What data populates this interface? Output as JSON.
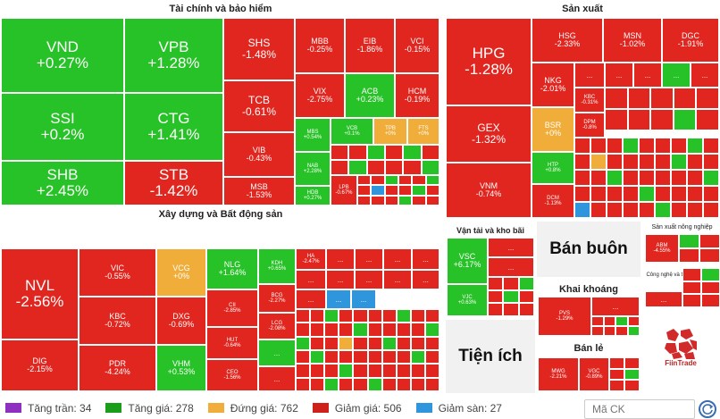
{
  "sectors": {
    "finance": {
      "title": "Tài chính và bảo hiểm"
    },
    "manufacturing": {
      "title": "Sản xuất"
    },
    "construction": {
      "title": "Xây dựng và Bất động sản"
    },
    "transport": {
      "title": "Vận tải và kho bãi"
    },
    "wholesale": {
      "title": "Bán buôn"
    },
    "mining": {
      "title": "Khai khoáng"
    },
    "retail": {
      "title": "Bán lẻ"
    },
    "utilities": {
      "title": "Tiện ích"
    },
    "agriculture": {
      "title": "Sản xuất nông nghiệp"
    },
    "tech": {
      "title": "Công nghệ và thông tin"
    }
  },
  "tiles": {
    "VND": {
      "t": "VND",
      "p": "+0.27%"
    },
    "VPB": {
      "t": "VPB",
      "p": "+1.28%"
    },
    "SSI": {
      "t": "SSI",
      "p": "+0.2%"
    },
    "CTG": {
      "t": "CTG",
      "p": "+1.41%"
    },
    "SHB": {
      "t": "SHB",
      "p": "+2.45%"
    },
    "STB": {
      "t": "STB",
      "p": "-1.42%"
    },
    "SHS": {
      "t": "SHS",
      "p": "-1.48%"
    },
    "TCB": {
      "t": "TCB",
      "p": "-0.61%"
    },
    "VIB": {
      "t": "VIB",
      "p": "-0.43%"
    },
    "MSB": {
      "t": "MSB",
      "p": "-1.53%"
    },
    "MBB": {
      "t": "MBB",
      "p": "-0.25%"
    },
    "EIB": {
      "t": "EIB",
      "p": "-1.86%"
    },
    "VCI": {
      "t": "VCI",
      "p": "-0.15%"
    },
    "VIX": {
      "t": "VIX",
      "p": "-2.75%"
    },
    "ACB": {
      "t": "ACB",
      "p": "+0.23%"
    },
    "HCM": {
      "t": "HCM",
      "p": "-0.19%"
    },
    "MBS": {
      "t": "MBS",
      "p": "+0.54%"
    },
    "VCB": {
      "t": "VCB",
      "p": "+0.1%"
    },
    "TPB": {
      "t": "TPB",
      "p": "+0%"
    },
    "FTS": {
      "t": "FTS",
      "p": "+0%"
    },
    "NAB": {
      "t": "NAB",
      "p": "+2.28%"
    },
    "HDB": {
      "t": "HDB",
      "p": "+0.27%"
    },
    "LPB": {
      "t": "LPB",
      "p": "-0.67%"
    },
    "HPG": {
      "t": "HPG",
      "p": "-1.28%"
    },
    "GEX": {
      "t": "GEX",
      "p": "-1.32%"
    },
    "VNM": {
      "t": "VNM",
      "p": "-0.74%"
    },
    "HSG": {
      "t": "HSG",
      "p": "-2.33%"
    },
    "MSN": {
      "t": "MSN",
      "p": "-1.02%"
    },
    "DGC": {
      "t": "DGC",
      "p": "-1.91%"
    },
    "NKG": {
      "t": "NKG",
      "p": "-2.01%"
    },
    "BSR": {
      "t": "BSR",
      "p": "+0%"
    },
    "HTP": {
      "t": "HTP",
      "p": "+0.8%"
    },
    "DCM": {
      "t": "DCM",
      "p": "-1.13%"
    },
    "KBC2": {
      "t": "KBC",
      "p": "-0.31%"
    },
    "DPM": {
      "t": "DPM",
      "p": "-0.8%"
    },
    "NVL": {
      "t": "NVL",
      "p": "-2.56%"
    },
    "DIG": {
      "t": "DIG",
      "p": "-2.15%"
    },
    "VIC": {
      "t": "VIC",
      "p": "-0.55%"
    },
    "KBC": {
      "t": "KBC",
      "p": "-0.72%"
    },
    "PDR": {
      "t": "PDR",
      "p": "-4.24%"
    },
    "VCG": {
      "t": "VCG",
      "p": "+0%"
    },
    "DXG": {
      "t": "DXG",
      "p": "-0.69%"
    },
    "VHM": {
      "t": "VHM",
      "p": "+0.53%"
    },
    "NLG": {
      "t": "NLG",
      "p": "+1.64%"
    },
    "KDH": {
      "t": "KDH",
      "p": "+0.65%"
    },
    "CII": {
      "t": "CII",
      "p": "-2.85%"
    },
    "HUT": {
      "t": "HUT",
      "p": "-0.64%"
    },
    "CEO": {
      "t": "CEO",
      "p": "-1.56%"
    },
    "BCG": {
      "t": "BCG",
      "p": "-2.27%"
    },
    "LCG": {
      "t": "LCG",
      "p": "-2.08%"
    },
    "HAX": {
      "t": "HA",
      "p": "-2.47%"
    },
    "VSC": {
      "t": "VSC",
      "p": "+6.17%"
    },
    "VJC": {
      "t": "VJC",
      "p": "+0.63%"
    },
    "PVS": {
      "t": "PVS",
      "p": "-1.29%"
    },
    "MWG": {
      "t": "MWG",
      "p": "-2.21%"
    },
    "VGC": {
      "t": "VGC",
      "p": "-0.89%"
    },
    "ABM": {
      "t": "ABM",
      "p": "-4.55%"
    }
  },
  "more": "...",
  "legend": {
    "ceiling": "Tăng trần: 34",
    "up": "Tăng giá: 278",
    "flat": "Đứng giá: 762",
    "down": "Giảm giá: 506",
    "floor": "Giảm sàn: 27"
  },
  "search": {
    "placeholder": "Mã CK"
  },
  "brand": {
    "name": "FiinTrade"
  },
  "colors": {
    "up": "#27c227",
    "down": "#e1261f",
    "flat": "#f0ad3a",
    "floor": "#2f95dc",
    "ceiling": "#8e2fc2"
  }
}
